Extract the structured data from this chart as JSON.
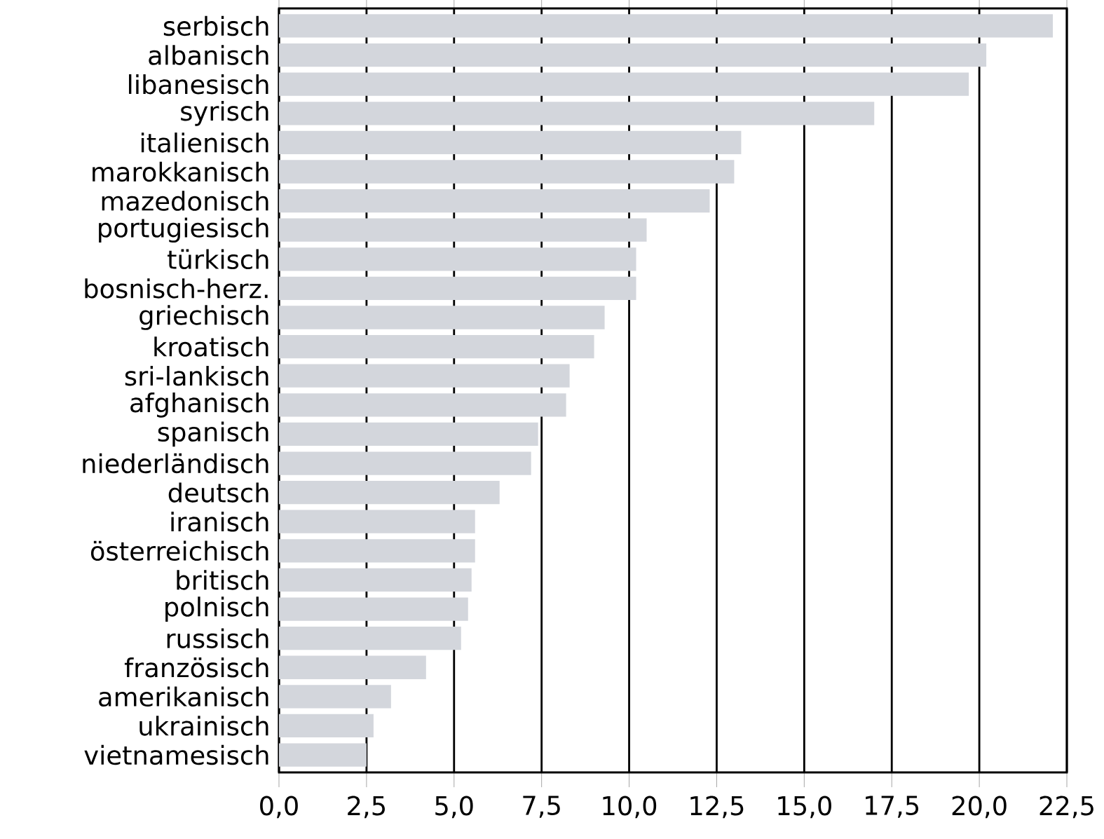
{
  "chart_data": {
    "type": "bar",
    "orientation": "horizontal",
    "categories": [
      "serbisch",
      "albanisch",
      "libanesisch",
      "syrisch",
      "italienisch",
      "marokkanisch",
      "mazedonisch",
      "portugiesisch",
      "türkisch",
      "bosnisch-herz.",
      "griechisch",
      "kroatisch",
      "sri-lankisch",
      "afghanisch",
      "spanisch",
      "niederländisch",
      "deutsch",
      "iranisch",
      "österreichisch",
      "britisch",
      "polnisch",
      "russisch",
      "französisch",
      "amerikanisch",
      "ukrainisch",
      "vietnamesisch"
    ],
    "values": [
      22.1,
      20.2,
      19.7,
      17.0,
      13.2,
      13.0,
      12.3,
      10.5,
      10.2,
      10.2,
      9.3,
      9.0,
      8.3,
      8.2,
      7.4,
      7.2,
      6.3,
      5.6,
      5.6,
      5.5,
      5.4,
      5.2,
      4.2,
      3.2,
      2.7,
      2.5
    ],
    "color": "#d3d6dc",
    "xlim": [
      0,
      22.5
    ],
    "xticks": [
      {
        "value": 0,
        "label": "0,0"
      },
      {
        "value": 2.5,
        "label": "2,5"
      },
      {
        "value": 5,
        "label": "5,0"
      },
      {
        "value": 7.5,
        "label": "7,5"
      },
      {
        "value": 10,
        "label": "10,0"
      },
      {
        "value": 12.5,
        "label": "12,5"
      },
      {
        "value": 15,
        "label": "15,0"
      },
      {
        "value": 17.5,
        "label": "17,5"
      },
      {
        "value": 20,
        "label": "20,0"
      },
      {
        "value": 22.5,
        "label": "22,5"
      }
    ],
    "grid": "x"
  }
}
